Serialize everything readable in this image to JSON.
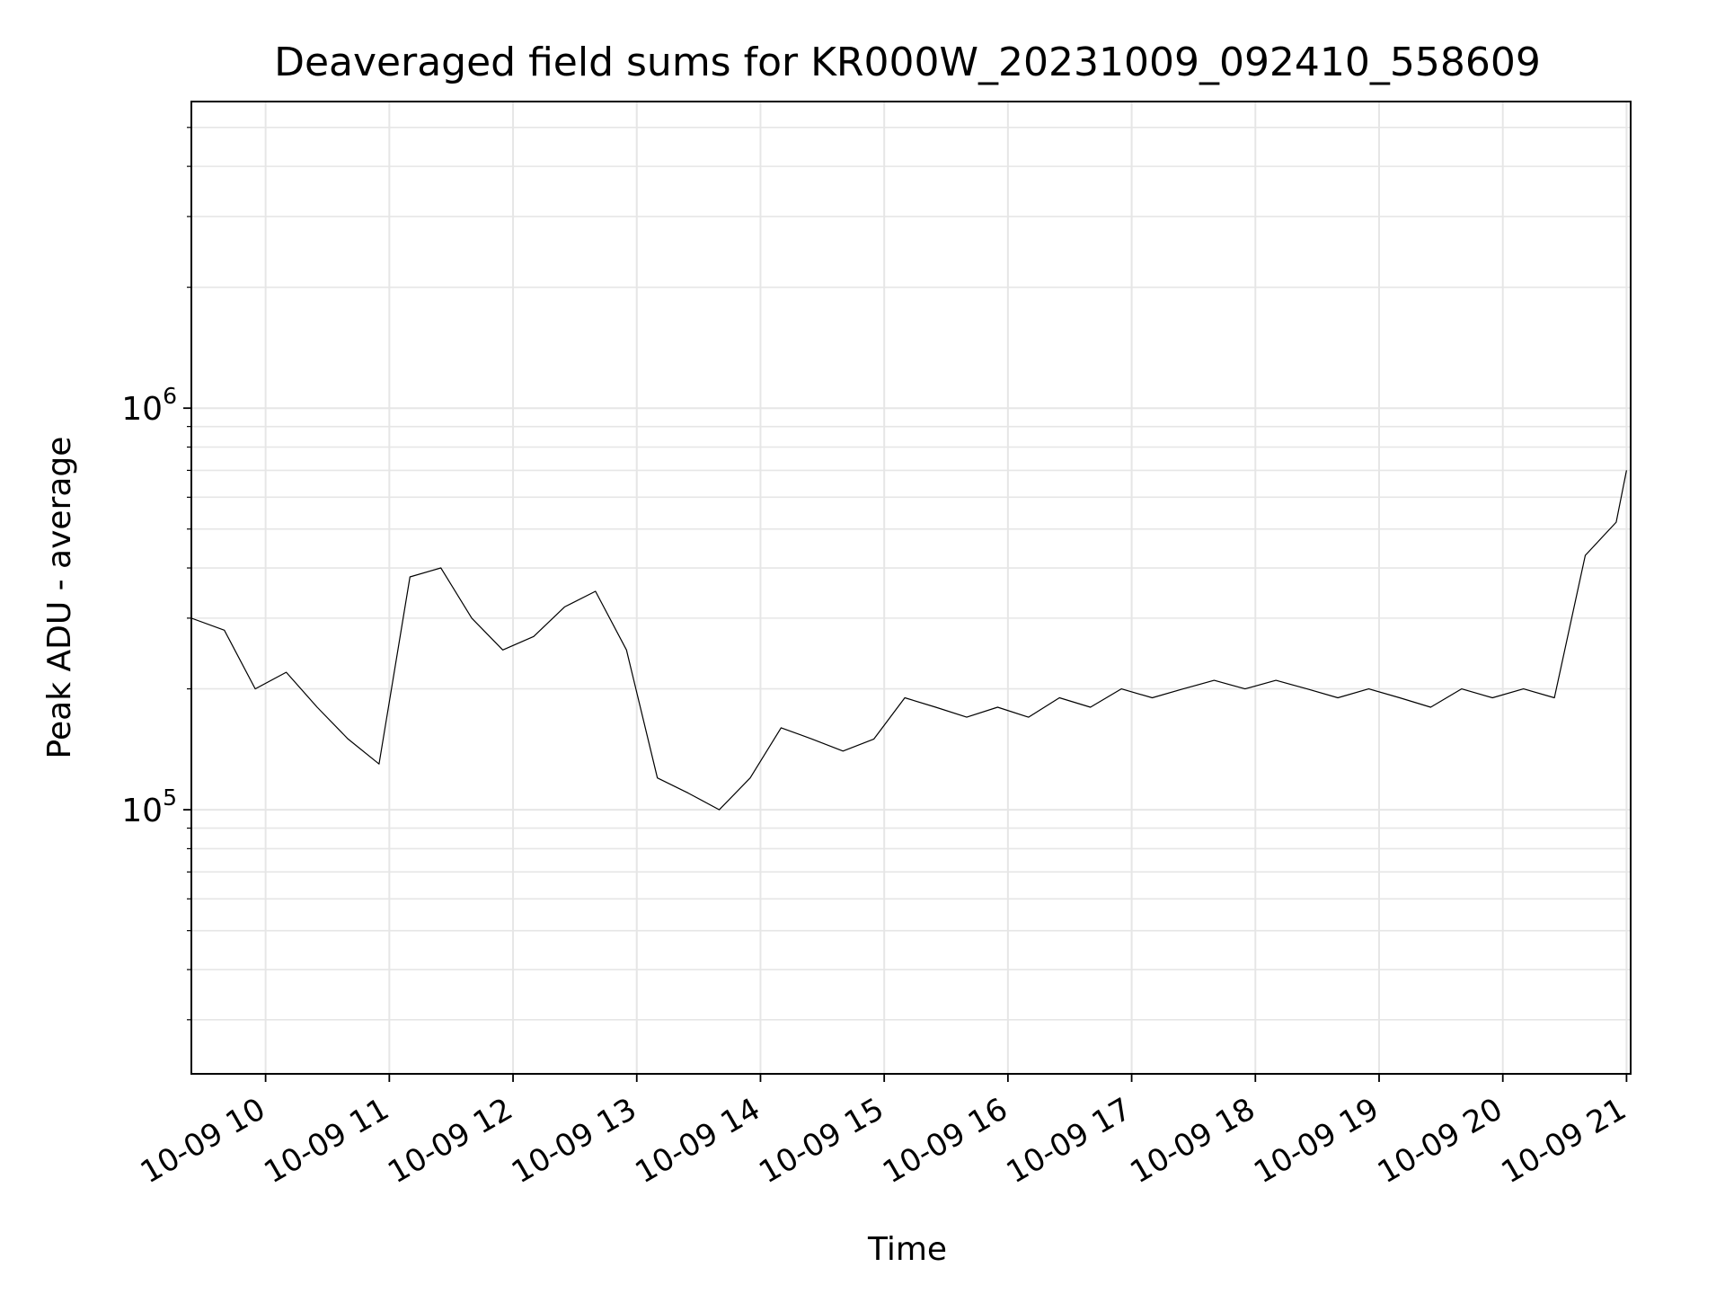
{
  "chart_data": {
    "type": "line",
    "title": "Deaveraged field sums for KR000W_20231009_092410_558609",
    "xlabel": "Time",
    "ylabel": "Peak ADU - average",
    "xscale": "time",
    "yscale": "log",
    "xlim": [
      "2023-10-09 09:24",
      "2023-10-09 21:02"
    ],
    "ylim": [
      22000,
      5800000
    ],
    "x_ticks": [
      {
        "value": "2023-10-09 10:00",
        "label": "10-09 10"
      },
      {
        "value": "2023-10-09 11:00",
        "label": "10-09 11"
      },
      {
        "value": "2023-10-09 12:00",
        "label": "10-09 12"
      },
      {
        "value": "2023-10-09 13:00",
        "label": "10-09 13"
      },
      {
        "value": "2023-10-09 14:00",
        "label": "10-09 14"
      },
      {
        "value": "2023-10-09 15:00",
        "label": "10-09 15"
      },
      {
        "value": "2023-10-09 16:00",
        "label": "10-09 16"
      },
      {
        "value": "2023-10-09 17:00",
        "label": "10-09 17"
      },
      {
        "value": "2023-10-09 18:00",
        "label": "10-09 18"
      },
      {
        "value": "2023-10-09 19:00",
        "label": "10-09 19"
      },
      {
        "value": "2023-10-09 20:00",
        "label": "10-09 20"
      },
      {
        "value": "2023-10-09 21:00",
        "label": "10-09 21"
      }
    ],
    "y_ticks": [
      {
        "value": 100000,
        "base": "10",
        "exp": "5"
      },
      {
        "value": 1000000,
        "base": "10",
        "exp": "6"
      }
    ],
    "grid": true,
    "line_color": "#000000",
    "grid_color": "#e6e6e6",
    "series": [
      {
        "x": [
          "2023-10-09 09:24",
          "2023-10-09 09:40",
          "2023-10-09 09:55",
          "2023-10-09 10:10",
          "2023-10-09 10:25",
          "2023-10-09 10:40",
          "2023-10-09 10:55",
          "2023-10-09 11:10",
          "2023-10-09 11:25",
          "2023-10-09 11:40",
          "2023-10-09 11:55",
          "2023-10-09 12:10",
          "2023-10-09 12:25",
          "2023-10-09 12:40",
          "2023-10-09 12:55",
          "2023-10-09 13:10",
          "2023-10-09 13:25",
          "2023-10-09 13:40",
          "2023-10-09 13:55",
          "2023-10-09 14:10",
          "2023-10-09 14:25",
          "2023-10-09 14:40",
          "2023-10-09 14:55",
          "2023-10-09 15:10",
          "2023-10-09 15:25",
          "2023-10-09 15:40",
          "2023-10-09 15:55",
          "2023-10-09 16:10",
          "2023-10-09 16:25",
          "2023-10-09 16:40",
          "2023-10-09 16:55",
          "2023-10-09 17:10",
          "2023-10-09 17:25",
          "2023-10-09 17:40",
          "2023-10-09 17:55",
          "2023-10-09 18:10",
          "2023-10-09 18:25",
          "2023-10-09 18:40",
          "2023-10-09 18:55",
          "2023-10-09 19:10",
          "2023-10-09 19:25",
          "2023-10-09 19:40",
          "2023-10-09 19:55",
          "2023-10-09 20:10",
          "2023-10-09 20:25",
          "2023-10-09 20:40",
          "2023-10-09 20:55",
          "2023-10-09 21:00"
        ],
        "y": [
          300000,
          280000,
          200000,
          220000,
          180000,
          150000,
          130000,
          380000,
          400000,
          300000,
          250000,
          270000,
          320000,
          350000,
          250000,
          120000,
          110000,
          100000,
          120000,
          160000,
          150000,
          140000,
          150000,
          190000,
          180000,
          170000,
          180000,
          170000,
          190000,
          180000,
          200000,
          190000,
          200000,
          210000,
          200000,
          210000,
          200000,
          190000,
          200000,
          190000,
          180000,
          200000,
          190000,
          200000,
          190000,
          430000,
          520000,
          700000
        ]
      }
    ]
  }
}
